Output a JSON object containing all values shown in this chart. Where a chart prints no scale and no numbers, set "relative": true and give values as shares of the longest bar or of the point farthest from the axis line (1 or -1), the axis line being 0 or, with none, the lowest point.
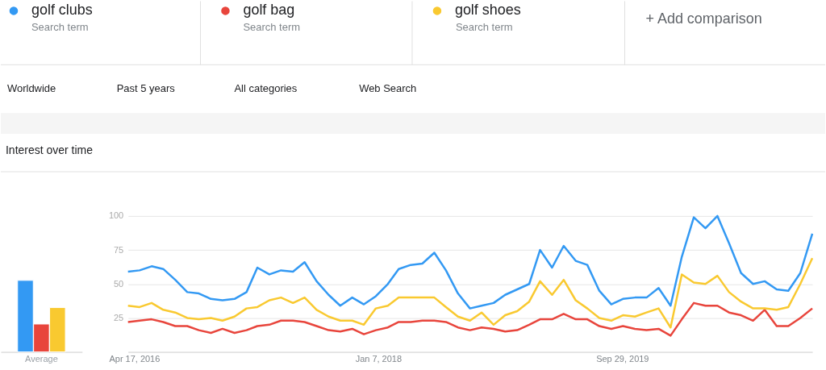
{
  "chart_data": [
    {
      "type": "bar",
      "relative": true,
      "categories": [
        "Average"
      ],
      "series": [
        {
          "color": "#3399f3",
          "values": [
            1
          ]
        },
        {
          "color": "#e8453c",
          "values": [
            0.39
          ]
        },
        {
          "color": "#f9c930",
          "values": [
            0.62
          ]
        }
      ]
    },
    {
      "type": "line",
      "title": "Interest over time",
      "legend": "top",
      "grid": "y",
      "marker": "none",
      "line_style": "solid",
      "annotations": [
        "Search term",
        "Search term",
        "Search term",
        "+ Add comparison",
        "Worldwide",
        "Past 5 years",
        "All categories",
        "Web Search"
      ],
      "x": [
        "2016-04",
        "2016-05",
        "2016-06",
        "2016-07",
        "2016-08",
        "2016-09",
        "2016-10",
        "2016-11",
        "2016-12",
        "2017-01",
        "2017-02",
        "2017-03",
        "2017-04",
        "2017-05",
        "2017-06",
        "2017-07",
        "2017-08",
        "2017-09",
        "2017-10",
        "2017-11",
        "2017-12",
        "2018-01",
        "2018-02",
        "2018-03",
        "2018-04",
        "2018-05",
        "2018-06",
        "2018-07",
        "2018-08",
        "2018-09",
        "2018-10",
        "2018-11",
        "2018-12",
        "2019-01",
        "2019-02",
        "2019-03",
        "2019-04",
        "2019-05",
        "2019-06",
        "2019-07",
        "2019-08",
        "2019-09",
        "2019-10",
        "2019-11",
        "2019-12",
        "2020-01",
        "2020-02",
        "2020-03",
        "2020-04",
        "2020-05",
        "2020-06",
        "2020-07",
        "2020-08",
        "2020-09",
        "2020-10",
        "2020-11",
        "2020-12",
        "2021-01",
        "2021-02"
      ],
      "xlim": [
        "2016-04",
        "2021-02"
      ],
      "xticks": [
        {
          "value": "2016-04-17",
          "label": "Apr 17, 2016"
        },
        {
          "value": "2018-01-07",
          "label": "Jan 7, 2018"
        },
        {
          "value": "2019-09-29",
          "label": "Sep 29, 2019"
        }
      ],
      "ylim": [
        0,
        100
      ],
      "yticks": [
        25,
        50,
        75,
        100
      ],
      "series": [
        {
          "name": "golf clubs",
          "color": "#3399f3",
          "values": [
            59,
            60,
            63,
            61,
            53,
            44,
            43,
            39,
            38,
            39,
            44,
            62,
            57,
            60,
            59,
            66,
            52,
            42,
            34,
            40,
            35,
            41,
            50,
            61,
            64,
            65,
            73,
            60,
            43,
            32,
            34,
            36,
            42,
            46,
            50,
            75,
            62,
            78,
            67,
            64,
            45,
            35,
            39,
            40,
            40,
            47,
            34,
            70,
            99,
            91,
            100,
            80,
            58,
            50,
            52,
            46,
            45,
            58,
            87
          ]
        },
        {
          "name": "golf bag",
          "color": "#e8453c",
          "values": [
            22,
            23,
            24,
            22,
            19,
            19,
            16,
            14,
            17,
            14,
            16,
            19,
            20,
            23,
            23,
            22,
            19,
            16,
            15,
            17,
            13,
            16,
            18,
            22,
            22,
            23,
            23,
            22,
            18,
            16,
            18,
            17,
            15,
            16,
            20,
            24,
            24,
            28,
            24,
            24,
            19,
            17,
            19,
            17,
            16,
            17,
            12,
            24,
            36,
            34,
            34,
            29,
            27,
            23,
            31,
            19,
            19,
            25,
            32
          ]
        },
        {
          "name": "golf shoes",
          "color": "#f9c930",
          "values": [
            34,
            33,
            36,
            31,
            29,
            25,
            24,
            25,
            23,
            26,
            32,
            33,
            38,
            40,
            36,
            40,
            31,
            26,
            23,
            23,
            20,
            32,
            34,
            40,
            40,
            40,
            40,
            33,
            26,
            23,
            29,
            20,
            27,
            30,
            37,
            52,
            42,
            53,
            38,
            32,
            25,
            23,
            27,
            26,
            29,
            32,
            18,
            57,
            51,
            50,
            56,
            44,
            37,
            32,
            32,
            31,
            33,
            50,
            69
          ]
        }
      ]
    }
  ]
}
